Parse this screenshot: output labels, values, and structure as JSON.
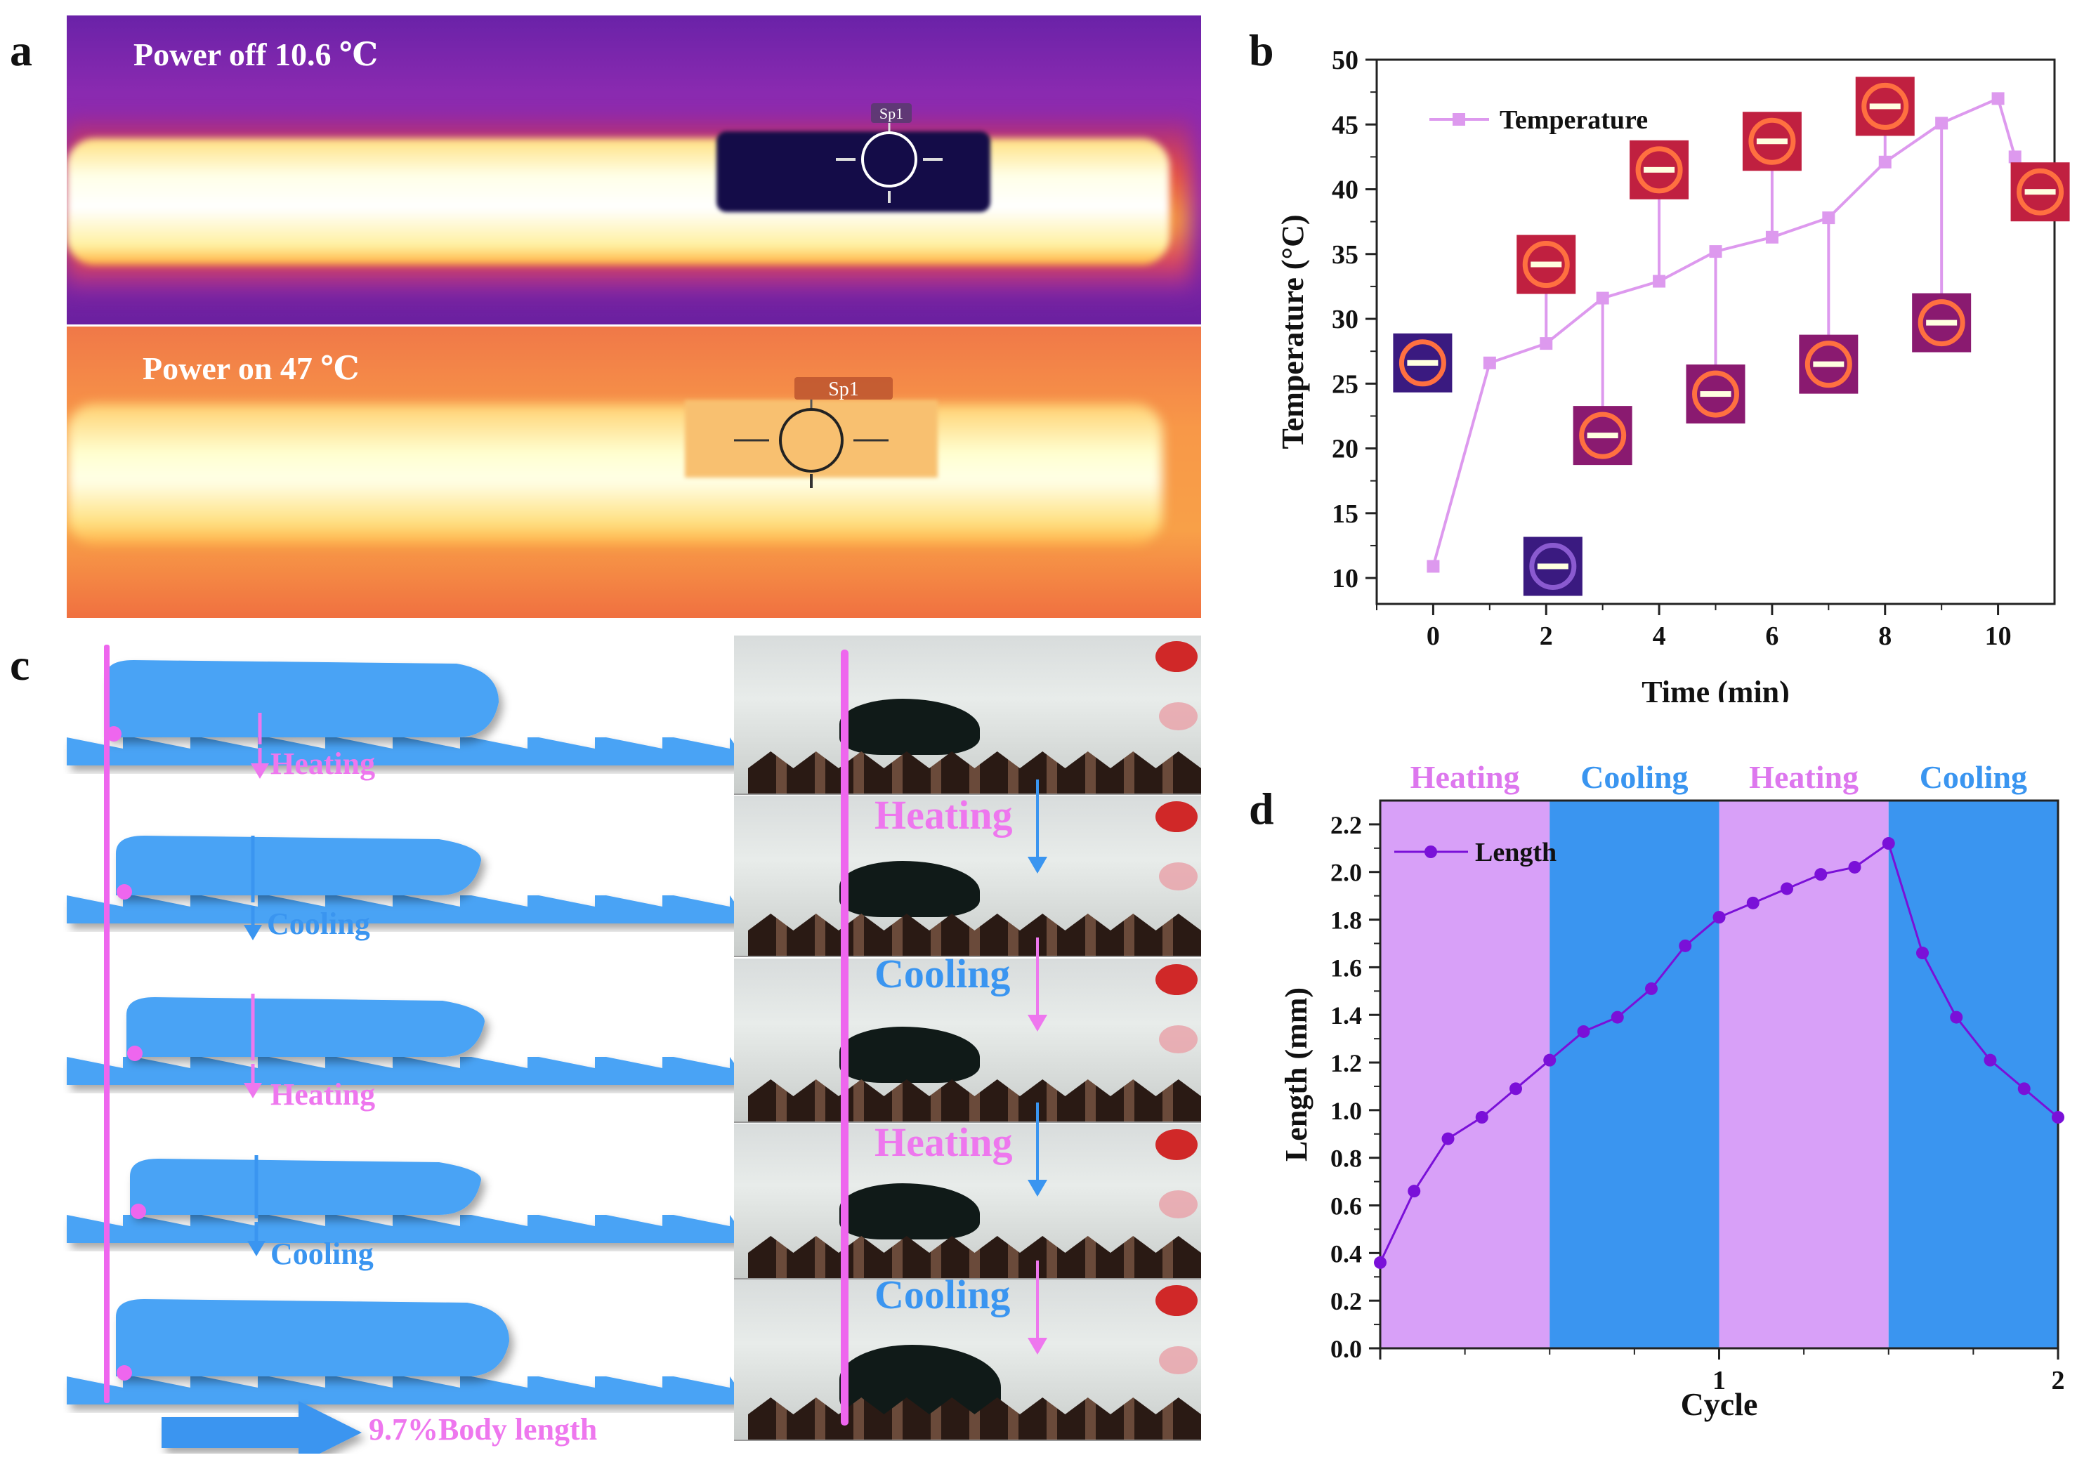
{
  "panel_labels": {
    "a": "a",
    "b": "b",
    "c": "c",
    "d": "d"
  },
  "panel_a": {
    "top_label": "Power off  10.6 ℃",
    "bottom_label": "Power on  47 ℃",
    "spot_label": "Sp1"
  },
  "panel_c": {
    "steps": [
      "Heating",
      "Cooling",
      "Heating",
      "Cooling"
    ],
    "body_length_label": "9.7%Body length",
    "colors": {
      "heating": "#ee77ee",
      "cooling": "#3a95f0",
      "robot": "#4aa3f5",
      "line": "#ee66ee"
    }
  },
  "chart_data": [
    {
      "panel": "b",
      "type": "line",
      "xlabel": "Time (min)",
      "ylabel": "Temperature (°C)",
      "xlim": [
        -1,
        11
      ],
      "ylim": [
        8,
        50
      ],
      "xticks": [
        "0",
        "2",
        "4",
        "6",
        "8",
        "10"
      ],
      "yticks": [
        "10",
        "15",
        "20",
        "25",
        "30",
        "35",
        "40",
        "45",
        "50"
      ],
      "series": [
        {
          "name": "Temperature",
          "color": "#dd99ee",
          "x": [
            0,
            1,
            2,
            3,
            4,
            5,
            6,
            7,
            8,
            9,
            10,
            10.3
          ],
          "y": [
            10.9,
            26.6,
            28.1,
            31.6,
            32.9,
            35.2,
            36.3,
            37.8,
            42.1,
            45.1,
            47.0,
            42.5
          ]
        }
      ],
      "legend": "top-left"
    },
    {
      "panel": "d",
      "type": "line",
      "xlabel": "Cycle",
      "ylabel": "Length (mm)",
      "xlim": [
        0,
        2
      ],
      "ylim": [
        0,
        2.3
      ],
      "xticks": [
        "1",
        "2"
      ],
      "yticks": [
        "0.0",
        "0.2",
        "0.4",
        "0.6",
        "0.8",
        "1.0",
        "1.2",
        "1.4",
        "1.6",
        "1.8",
        "2.0",
        "2.2"
      ],
      "bands": [
        {
          "label": "Heating",
          "from": 0,
          "to": 0.5,
          "color": "#d8a0f8",
          "label_color": "#dd77ee"
        },
        {
          "label": "Cooling",
          "from": 0.5,
          "to": 1.0,
          "color": "#3a95f0",
          "label_color": "#3a95f0"
        },
        {
          "label": "Heating",
          "from": 1.0,
          "to": 1.5,
          "color": "#d8a0f8",
          "label_color": "#dd77ee"
        },
        {
          "label": "Cooling",
          "from": 1.5,
          "to": 2.0,
          "color": "#3a95f0",
          "label_color": "#3a95f0"
        }
      ],
      "series": [
        {
          "name": "Length",
          "color": "#7a10d8",
          "x": [
            0,
            0.1,
            0.2,
            0.3,
            0.4,
            0.5,
            0.6,
            0.7,
            0.8,
            0.9,
            1.0,
            1.1,
            1.2,
            1.3,
            1.4,
            1.5,
            1.6,
            1.7,
            1.8,
            1.9,
            2.0
          ],
          "y": [
            0.36,
            0.66,
            0.88,
            0.97,
            1.09,
            1.21,
            1.33,
            1.39,
            1.51,
            1.69,
            1.81,
            1.87,
            1.93,
            1.99,
            2.02,
            2.12,
            1.66,
            1.39,
            1.21,
            1.09,
            0.97
          ]
        }
      ],
      "legend": "top-left"
    }
  ]
}
